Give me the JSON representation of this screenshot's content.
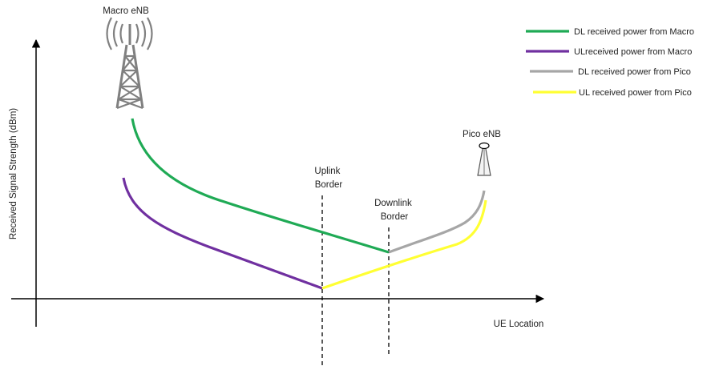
{
  "diagram": {
    "macro_label": "Macro eNB",
    "pico_label": "Pico eNB",
    "uplink_border": [
      "Uplink",
      "Border"
    ],
    "downlink_border": [
      "Downlink",
      "Border"
    ],
    "y_axis_label": "Received Signal Strength (dBm)",
    "x_axis_label": "UE Location"
  },
  "legend": [
    {
      "label": "DL received power from Macro",
      "color": "#1faa55"
    },
    {
      "label": "ULreceived power from Macro",
      "color": "#7030a0"
    },
    {
      "label": "DL received power from Pico",
      "color": "#a6a6a6"
    },
    {
      "label": "UL received power from Pico",
      "color": "#ffff33"
    }
  ],
  "colors": {
    "dl_macro": "#1faa55",
    "ul_macro": "#7030a0",
    "dl_pico": "#a6a6a6",
    "ul_pico": "#ffff33",
    "tower": "#808080"
  }
}
